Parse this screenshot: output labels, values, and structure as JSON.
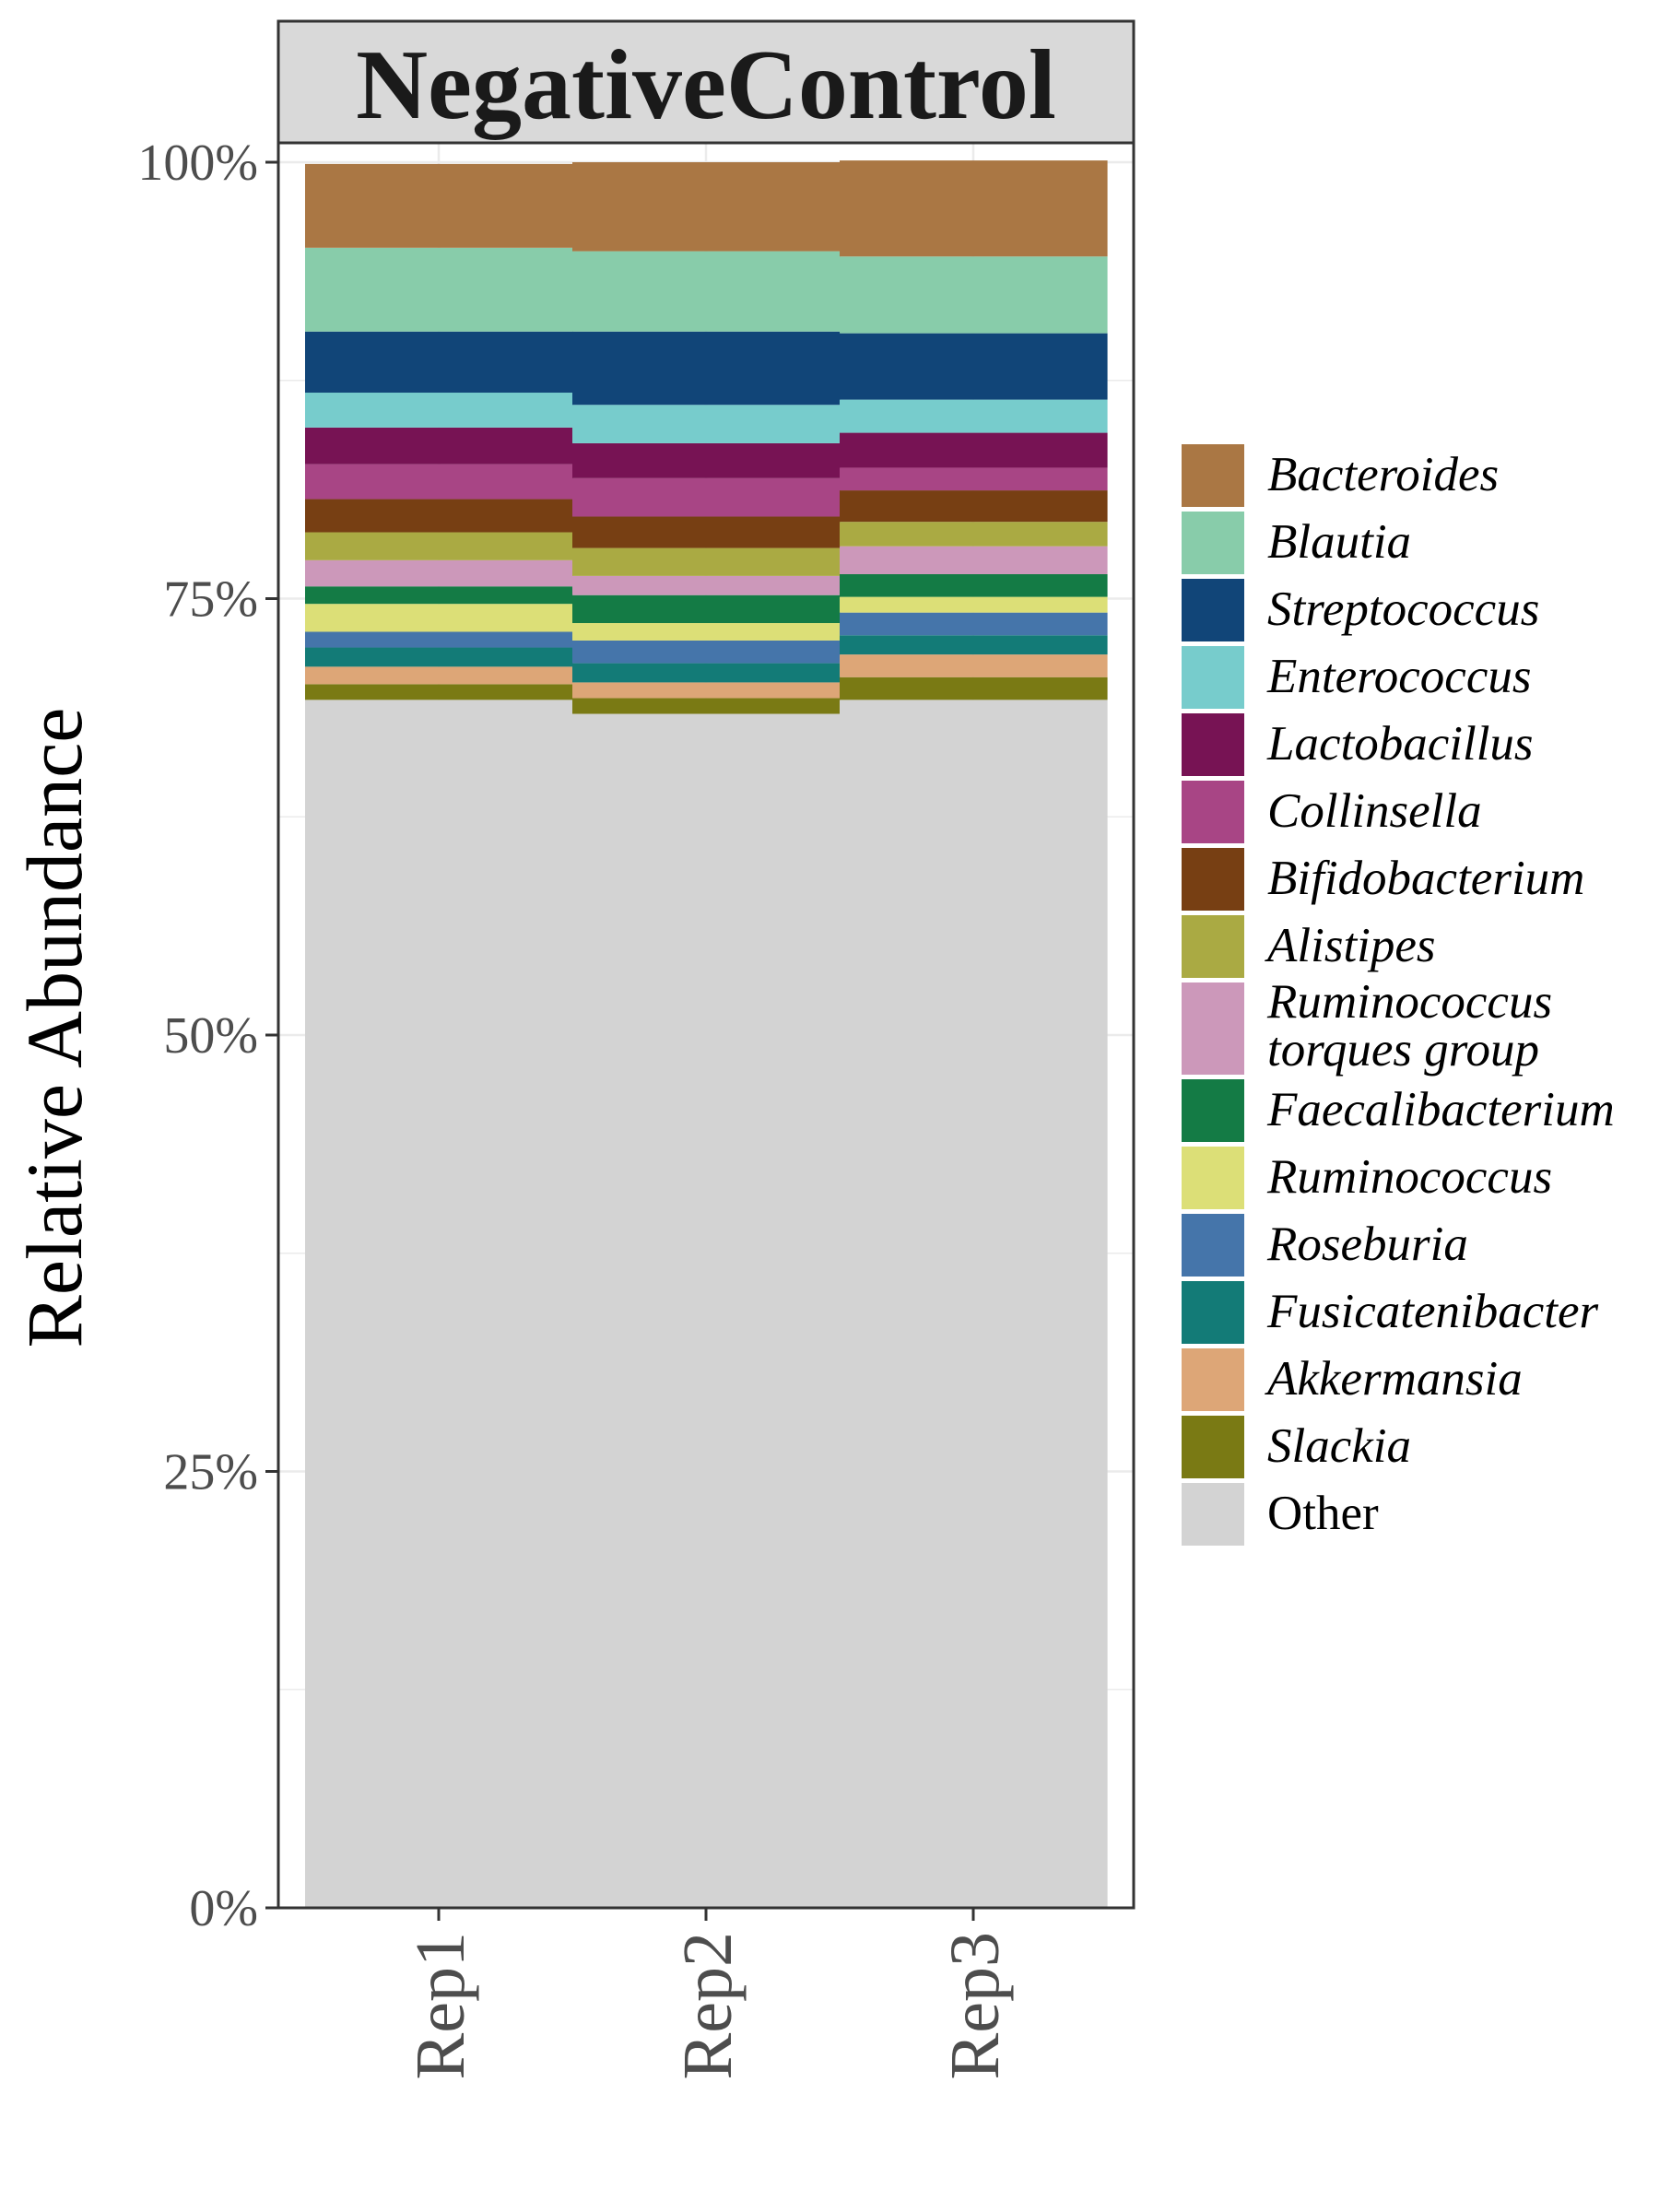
{
  "chart_data": {
    "type": "bar",
    "stacked": true,
    "facet_title": "NegativeControl",
    "ylabel": "Relative Abundance",
    "xlabel": "",
    "categories": [
      "Rep1",
      "Rep2",
      "Rep3"
    ],
    "ylim": [
      0,
      100
    ],
    "yticks": [
      "0%",
      "25%",
      "50%",
      "75%",
      "100%"
    ],
    "grid": true,
    "legend_position": "right",
    "series": [
      {
        "name": "Other",
        "color": "#d3d3d3",
        "italic": false,
        "values": [
          69.2,
          68.4,
          69.2
        ]
      },
      {
        "name": "Slackia",
        "color": "#7a7a14",
        "italic": true,
        "values": [
          0.9,
          0.9,
          1.3
        ]
      },
      {
        "name": "Akkermansia",
        "color": "#dda677",
        "italic": true,
        "values": [
          1.0,
          0.9,
          1.3
        ]
      },
      {
        "name": "Fusicatenibacter",
        "color": "#137b77",
        "italic": true,
        "values": [
          1.1,
          1.1,
          1.1
        ]
      },
      {
        "name": "Roseburia",
        "color": "#4575aa",
        "italic": true,
        "values": [
          0.9,
          1.3,
          1.3
        ]
      },
      {
        "name": "Ruminococcus",
        "color": "#dcdf77",
        "italic": true,
        "values": [
          1.6,
          1.0,
          0.9
        ]
      },
      {
        "name": "Faecalibacterium",
        "color": "#147b45",
        "italic": true,
        "values": [
          1.0,
          1.6,
          1.3
        ]
      },
      {
        "name": "Ruminococcus\ntorques group",
        "color": "#cc98ba",
        "italic": true,
        "values": [
          1.5,
          1.1,
          1.6
        ]
      },
      {
        "name": "Alistipes",
        "color": "#aaaa43",
        "italic": true,
        "values": [
          1.6,
          1.6,
          1.4
        ]
      },
      {
        "name": "Bifidobacterium",
        "color": "#773f13",
        "italic": true,
        "values": [
          1.9,
          1.8,
          1.8
        ]
      },
      {
        "name": "Collinsella",
        "color": "#a84585",
        "italic": true,
        "values": [
          2.0,
          2.2,
          1.3
        ]
      },
      {
        "name": "Lactobacillus",
        "color": "#771354",
        "italic": true,
        "values": [
          2.1,
          2.0,
          2.0
        ]
      },
      {
        "name": "Enterococcus",
        "color": "#77cccc",
        "italic": true,
        "values": [
          2.0,
          2.2,
          1.9
        ]
      },
      {
        "name": "Streptococcus",
        "color": "#114578",
        "italic": true,
        "values": [
          3.5,
          4.2,
          3.8
        ]
      },
      {
        "name": "Blautia",
        "color": "#88ccaa",
        "italic": true,
        "values": [
          4.8,
          4.6,
          4.4
        ]
      },
      {
        "name": "Bacteroides",
        "color": "#aa7744",
        "italic": true,
        "values": [
          4.8,
          5.1,
          5.5
        ]
      }
    ]
  }
}
